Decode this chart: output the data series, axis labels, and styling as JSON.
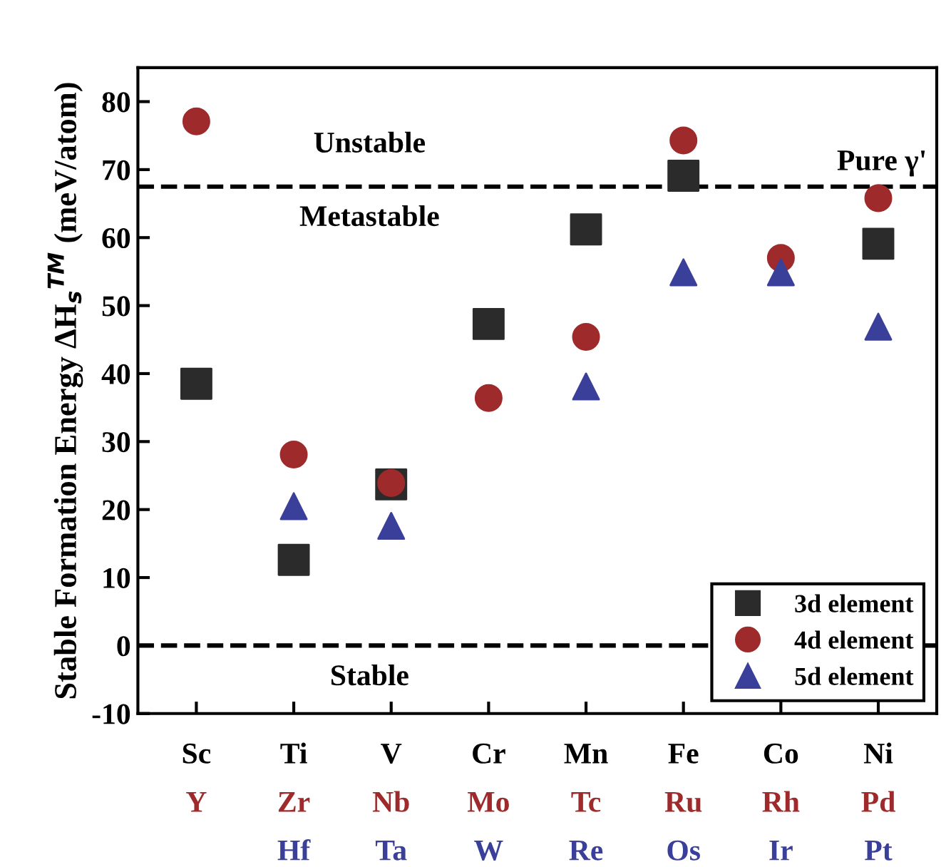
{
  "chart_data": {
    "type": "scatter",
    "ylabel": "Stable Formation Energy ΔH$_{s}$$^{TM}$ (meV/atom)",
    "categories": [
      "Sc\nY",
      "Ti\nZr\nHf",
      "V\nNb\nTa",
      "Cr\nMo\nW",
      "Mn\nTc\nRe",
      "Fe\nRu\nOs",
      "Co\nRh\nIr",
      "Ni\nPd\nPt"
    ],
    "series": [
      {
        "name": "3d element",
        "color": "#2b2b2b",
        "marker": "square",
        "values": [
          38.5,
          12.6,
          23.7,
          47.3,
          61.2,
          69.1,
          null,
          59.1
        ]
      },
      {
        "name": "4d element",
        "color": "#9e2a2b",
        "marker": "circle",
        "values": [
          77.1,
          28.1,
          23.9,
          36.4,
          45.4,
          74.3,
          57.0,
          65.8
        ]
      },
      {
        "name": "5d element",
        "color": "#3a3f9a",
        "marker": "triangle",
        "values": [
          null,
          20.5,
          17.6,
          null,
          38.1,
          54.9,
          54.9,
          46.9
        ]
      }
    ],
    "ylim": [
      -10,
      85
    ],
    "yticks": [
      -10,
      0,
      10,
      20,
      30,
      40,
      50,
      60,
      70,
      80
    ],
    "ref_lines": [
      {
        "axis": "y",
        "value": 67.5,
        "label": "Pure γ'",
        "color": "#000000",
        "line_style": "dashed"
      },
      {
        "axis": "y",
        "value": 0,
        "label": null,
        "color": "#000000",
        "line_style": "dashed"
      }
    ],
    "annotations": [
      "Unstable",
      "Metastable",
      "Stable"
    ],
    "grid": false,
    "legend": "bottom right"
  }
}
